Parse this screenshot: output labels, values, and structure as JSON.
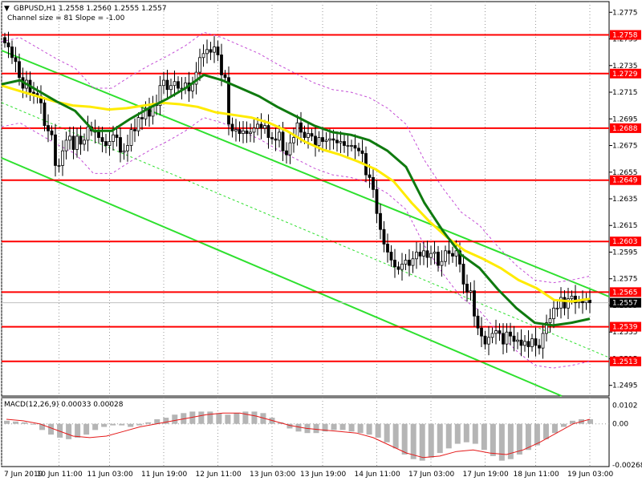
{
  "header": {
    "symbol_line": "GBPUSD,H1  1.2558 1.2560 1.2555 1.2557",
    "channel_line": "Channel size = 81 Slope = -1.00",
    "macd_line": "MACD(12,26,9) 0.00033 0.00028"
  },
  "chart_data": {
    "type": "line",
    "title": "GBPUSD,H1",
    "x_ticks": [
      "7 Jun 2019",
      "10 Jun 11:00",
      "11 Jun 03:00",
      "11 Jun 19:00",
      "12 Jun 11:00",
      "13 Jun 03:00",
      "13 Jun 19:00",
      "14 Jun 11:00",
      "17 Jun 03:00",
      "17 Jun 19:00",
      "18 Jun 11:00",
      "19 Jun 03:00"
    ],
    "price_axis": {
      "ticks": [
        "1.2775",
        "1.2755",
        "1.2735",
        "1.2715",
        "1.2695",
        "1.2675",
        "1.2655",
        "1.2635",
        "1.2615",
        "1.2595",
        "1.2575",
        "1.2555",
        "1.2535",
        "1.2515",
        "1.2495"
      ],
      "range": [
        1.2487,
        1.2783
      ]
    },
    "levels": [
      {
        "label": "1.2758",
        "value": 1.2758
      },
      {
        "label": "1.2729",
        "value": 1.2729
      },
      {
        "label": "1.2688",
        "value": 1.2688
      },
      {
        "label": "1.2649",
        "value": 1.2649
      },
      {
        "label": "1.2603",
        "value": 1.2603
      },
      {
        "label": "1.2565",
        "value": 1.2565
      },
      {
        "label": "1.2539",
        "value": 1.2539
      },
      {
        "label": "1.2513",
        "value": 1.2513
      }
    ],
    "current_price": {
      "label": "1.2557",
      "value": 1.2557
    },
    "series": [
      {
        "kind": "close",
        "values": [
          1.2752,
          1.2749,
          1.2741,
          1.2738,
          1.2726,
          1.2718,
          1.2724,
          1.2715,
          1.2714,
          1.2712,
          1.2707,
          1.269,
          1.2686,
          1.2683,
          1.266,
          1.266,
          1.2671,
          1.2679,
          1.2682,
          1.2672,
          1.2682,
          1.2676,
          1.2679,
          1.2689,
          1.2686,
          1.2685,
          1.2681,
          1.2678,
          1.2675,
          1.2678,
          1.2683,
          1.2681,
          1.267,
          1.2671,
          1.2675,
          1.2687,
          1.2686,
          1.2696,
          1.2695,
          1.2703,
          1.2697,
          1.2706,
          1.2705,
          1.272,
          1.2724,
          1.2717,
          1.272,
          1.2723,
          1.2718,
          1.2718,
          1.2722,
          1.2716,
          1.2721,
          1.273,
          1.2741,
          1.2744,
          1.2747,
          1.2745,
          1.2749,
          1.2743,
          1.2728,
          1.2726,
          1.2691,
          1.2686,
          1.2687,
          1.2684,
          1.2686,
          1.2684,
          1.2685,
          1.2688,
          1.2691,
          1.2688,
          1.269,
          1.2681,
          1.268,
          1.2679,
          1.2685,
          1.2671,
          1.2668,
          1.2677,
          1.2681,
          1.2692,
          1.2685,
          1.2681,
          1.2684,
          1.2682,
          1.2675,
          1.2681,
          1.2678,
          1.2679,
          1.268,
          1.2679,
          1.2677,
          1.2678,
          1.2675,
          1.2675,
          1.2675,
          1.2673,
          1.2671,
          1.2669,
          1.2653,
          1.2651,
          1.2642,
          1.2624,
          1.2612,
          1.2601,
          1.2595,
          1.2589,
          1.2584,
          1.2582,
          1.2586,
          1.2589,
          1.2585,
          1.259,
          1.2595,
          1.2592,
          1.2596,
          1.2591,
          1.2594,
          1.2595,
          1.2585,
          1.2588,
          1.2596,
          1.2594,
          1.2592,
          1.2596,
          1.2586,
          1.2571,
          1.2565,
          1.2566,
          1.2547,
          1.2538,
          1.2532,
          1.2526,
          1.2531,
          1.2534,
          1.2536,
          1.2534,
          1.2526,
          1.2535,
          1.2532,
          1.2528,
          1.2529,
          1.2525,
          1.2528,
          1.2524,
          1.253,
          1.2525,
          1.2523,
          1.2534,
          1.2542,
          1.2545,
          1.2553,
          1.2553,
          1.2561,
          1.2553,
          1.256,
          1.2562,
          1.2557,
          1.2558,
          1.2557,
          1.2559,
          1.2557
        ]
      },
      {
        "name": "MA slow (yellow)",
        "values": [
          1.272,
          1.2716,
          1.2712,
          1.2708,
          1.2705,
          1.2704,
          1.2702,
          1.2703,
          1.2705,
          1.2707,
          1.2706,
          1.2704,
          1.27,
          1.2698,
          1.2696,
          1.2692,
          1.2686,
          1.2678,
          1.2672,
          1.2668,
          1.2663,
          1.2657,
          1.2648,
          1.2632,
          1.2618,
          1.2606,
          1.2596,
          1.259,
          1.2583,
          1.2574,
          1.2568,
          1.2559,
          1.2558,
          1.256
        ]
      },
      {
        "name": "MA fast (dark green)",
        "values": [
          1.2721,
          1.2724,
          1.2716,
          1.2708,
          1.2701,
          1.2686,
          1.2686,
          1.2695,
          1.2703,
          1.271,
          1.2718,
          1.2728,
          1.2724,
          1.2718,
          1.2712,
          1.2704,
          1.2697,
          1.269,
          1.2685,
          1.2683,
          1.2679,
          1.2671,
          1.2659,
          1.2632,
          1.2611,
          1.2593,
          1.2583,
          1.2567,
          1.2553,
          1.2542,
          1.254,
          1.2542,
          1.2545
        ]
      }
    ],
    "macd": {
      "axis_ticks": [
        "0.0102",
        "0.00",
        "-0.00268"
      ],
      "histogram": [
        0.0002,
        0.00015,
        0.0001,
        0.0,
        -0.0004,
        -0.0007,
        -0.0009,
        -0.001,
        -0.0009,
        -0.0007,
        -0.0004,
        -0.0002,
        -0.0001,
        -0.0001,
        -0.0002,
        -0.0001,
        0.0001,
        0.0003,
        0.0004,
        0.0006,
        0.0007,
        0.0008,
        0.0008,
        0.0008,
        0.0007,
        0.0006,
        0.0007,
        0.0008,
        0.0008,
        0.0007,
        0.0004,
        0.0001,
        -0.0003,
        -0.0005,
        -0.0006,
        -0.0006,
        -0.0005,
        -0.0004,
        -0.0004,
        -0.0005,
        -0.0006,
        -0.0007,
        -0.0009,
        -0.0012,
        -0.0016,
        -0.002,
        -0.0023,
        -0.0024,
        -0.0022,
        -0.0019,
        -0.0016,
        -0.0013,
        -0.0012,
        -0.0013,
        -0.0017,
        -0.0021,
        -0.0024,
        -0.0023,
        -0.002,
        -0.0017,
        -0.0014,
        -0.001,
        -0.0006,
        -0.0002,
        0.0002,
        0.0003,
        0.0003
      ],
      "signal": [
        0.0003,
        0.0002,
        0.0,
        -0.0004,
        -0.0008,
        -0.0009,
        -0.0008,
        -0.0005,
        -0.0002,
        0.0,
        0.0002,
        0.0004,
        0.0006,
        0.0007,
        0.0007,
        0.0005,
        0.0002,
        -0.0001,
        -0.0003,
        -0.0004,
        -0.0005,
        -0.0006,
        -0.0009,
        -0.0014,
        -0.0019,
        -0.0022,
        -0.0021,
        -0.0018,
        -0.0017,
        -0.0019,
        -0.002,
        -0.0017,
        -0.0012,
        -0.0006,
        0.0,
        0.0003
      ]
    }
  }
}
